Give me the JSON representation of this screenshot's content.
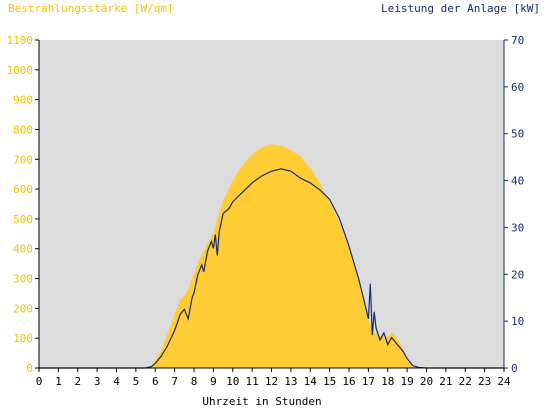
{
  "chart_data": {
    "type": "area",
    "title_left": "Bestrahlungsstärke [W/qm]",
    "title_right": "Leistung der Anlage [kW]",
    "xlabel": "Uhrzeit in Stunden",
    "x_ticks": [
      "0",
      "1",
      "2",
      "3",
      "4",
      "5",
      "6",
      "7",
      "8",
      "9",
      "10",
      "11",
      "12",
      "13",
      "14",
      "15",
      "16",
      "17",
      "18",
      "19",
      "20",
      "21",
      "22",
      "23",
      "24"
    ],
    "y_left_ticks": [
      "0",
      "100",
      "200",
      "300",
      "400",
      "500",
      "600",
      "700",
      "800",
      "900",
      "1000",
      "1100"
    ],
    "y_right_ticks": [
      "0",
      "10",
      "20",
      "30",
      "40",
      "50",
      "60",
      "70"
    ],
    "xlim": [
      0,
      24
    ],
    "ylim_left": [
      0,
      1100
    ],
    "ylim_right": [
      0,
      70
    ],
    "colors": {
      "irradiance": "#ffcc33",
      "power": "#1a2a6c",
      "plot_bg": "#dcdcdc",
      "left_axis": "#f5c200",
      "right_axis": "#1a2a6c"
    },
    "series": [
      {
        "name": "Bestrahlungsstärke [W/qm]",
        "axis": "left",
        "style": "area",
        "x": [
          0,
          5.5,
          5.8,
          6.0,
          6.3,
          6.6,
          7.0,
          7.3,
          7.6,
          7.9,
          8.2,
          8.5,
          8.8,
          9.0,
          9.3,
          9.5,
          9.8,
          10.0,
          10.5,
          11.0,
          11.5,
          12.0,
          12.5,
          13.0,
          13.5,
          14.0,
          14.5,
          15.0,
          15.5,
          16.0,
          16.5,
          16.8,
          17.0,
          17.3,
          17.6,
          17.9,
          18.2,
          18.5,
          18.8,
          19.0,
          19.3,
          19.6,
          20.0,
          24
        ],
        "y": [
          0,
          0,
          5,
          25,
          60,
          110,
          180,
          230,
          250,
          300,
          350,
          390,
          430,
          450,
          520,
          560,
          600,
          630,
          680,
          715,
          740,
          750,
          745,
          730,
          710,
          670,
          620,
          560,
          490,
          400,
          300,
          220,
          160,
          120,
          110,
          100,
          120,
          100,
          60,
          30,
          10,
          2,
          0,
          0
        ]
      },
      {
        "name": "Leistung der Anlage [kW]",
        "axis": "right",
        "style": "line",
        "x": [
          0,
          5.5,
          5.8,
          6.0,
          6.3,
          6.6,
          7.0,
          7.3,
          7.5,
          7.7,
          7.9,
          8.0,
          8.2,
          8.4,
          8.5,
          8.7,
          8.9,
          9.0,
          9.1,
          9.2,
          9.3,
          9.5,
          9.8,
          10.0,
          10.5,
          11.0,
          11.5,
          12.0,
          12.5,
          13.0,
          13.5,
          14.0,
          14.5,
          15.0,
          15.5,
          16.0,
          16.5,
          16.8,
          17.0,
          17.1,
          17.2,
          17.3,
          17.4,
          17.6,
          17.8,
          18.0,
          18.2,
          18.5,
          18.8,
          19.0,
          19.3,
          19.6,
          20.0,
          24
        ],
        "y": [
          0,
          0,
          0.3,
          1.0,
          2.5,
          4.5,
          8.0,
          11.5,
          12.5,
          10.5,
          15.0,
          16.0,
          20.0,
          22.0,
          20.5,
          25.0,
          27.0,
          25.5,
          28.5,
          24.0,
          29.0,
          33.0,
          34.0,
          35.5,
          37.5,
          39.5,
          41.0,
          42.0,
          42.5,
          42.0,
          40.5,
          39.5,
          38.0,
          36.0,
          32.0,
          26.0,
          19.0,
          14.0,
          10.5,
          18.0,
          7.0,
          12.0,
          8.5,
          6.0,
          7.5,
          5.0,
          6.5,
          5.0,
          3.5,
          2.0,
          0.5,
          0.1,
          0,
          0
        ]
      }
    ]
  }
}
